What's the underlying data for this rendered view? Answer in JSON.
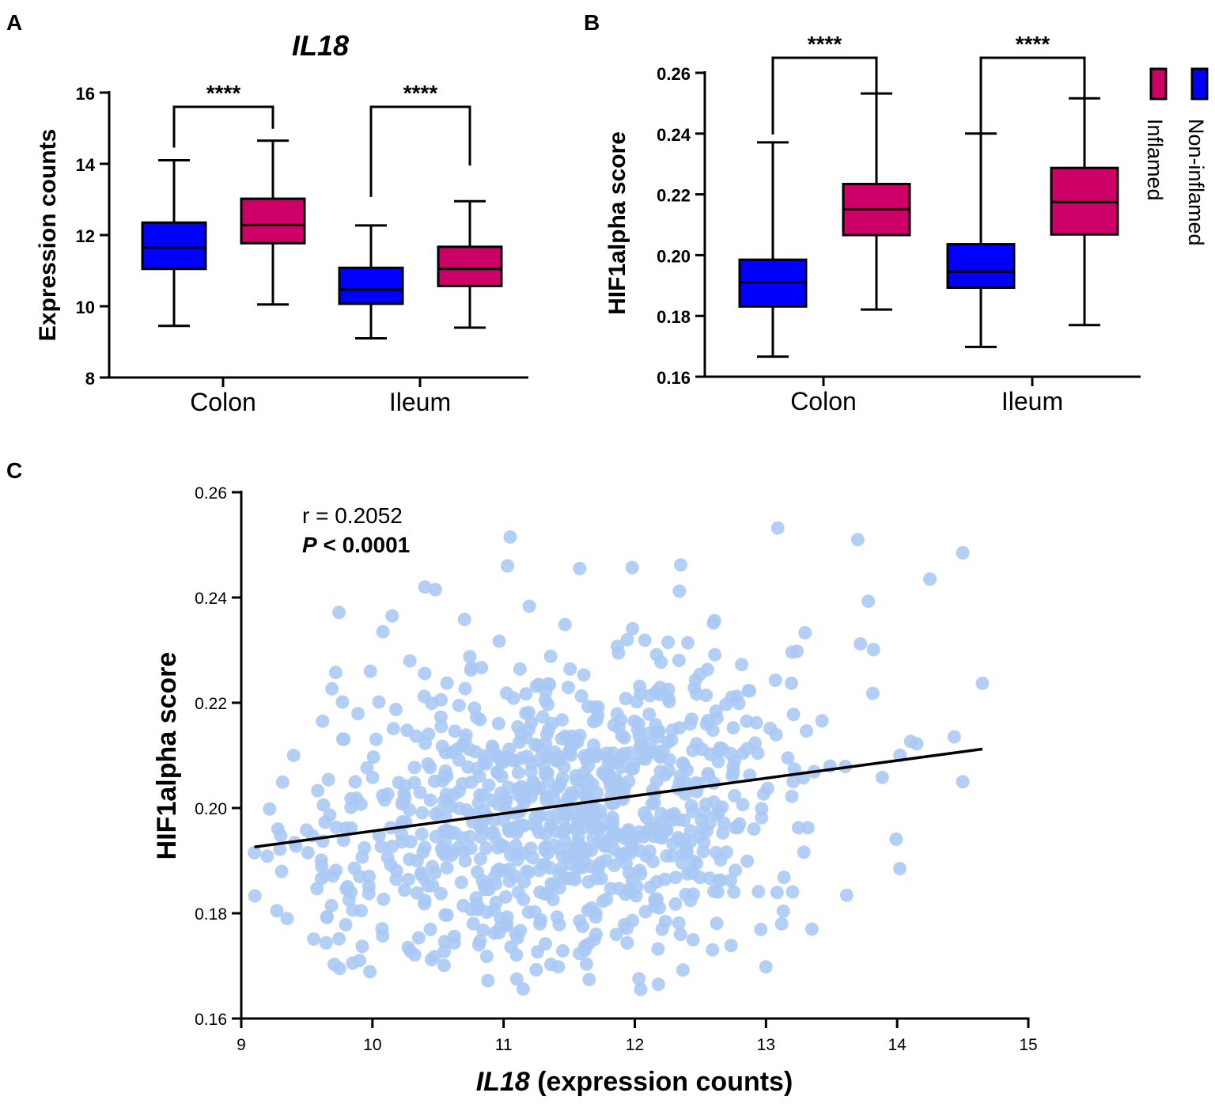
{
  "colors": {
    "non_inflamed": "#0000ff",
    "inflamed": "#cc0066",
    "scatter_dot": "#a8c8f4",
    "axis": "#000000"
  },
  "legend": {
    "items": [
      {
        "label": "Inflamed",
        "color": "#cc0066"
      },
      {
        "label": "Non-inflamed",
        "color": "#0000ff"
      }
    ]
  },
  "chart_data": [
    {
      "panel": "A",
      "type": "box",
      "title": "IL18",
      "ylabel": "Expression counts",
      "xlabel": "",
      "ylim": [
        8,
        16
      ],
      "yticks": [
        8,
        10,
        12,
        14,
        16
      ],
      "categories": [
        "Colon",
        "Ileum"
      ],
      "series": [
        {
          "name": "Non-inflamed",
          "color": "#0000ff",
          "boxes": [
            {
              "min": 9.45,
              "q1": 11.05,
              "median": 11.65,
              "q3": 12.35,
              "max": 14.1
            },
            {
              "min": 9.1,
              "q1": 10.07,
              "median": 10.47,
              "q3": 11.08,
              "max": 12.27
            }
          ]
        },
        {
          "name": "Inflamed",
          "color": "#cc0066",
          "boxes": [
            {
              "min": 10.05,
              "q1": 11.77,
              "median": 12.28,
              "q3": 13.02,
              "max": 14.65
            },
            {
              "min": 9.4,
              "q1": 10.57,
              "median": 11.05,
              "q3": 11.67,
              "max": 12.95
            }
          ]
        }
      ],
      "significance": [
        "****",
        "****"
      ]
    },
    {
      "panel": "B",
      "type": "box",
      "title": "",
      "ylabel": "HIF1alpha score",
      "xlabel": "",
      "ylim": [
        0.16,
        0.26
      ],
      "yticks": [
        0.16,
        0.18,
        0.2,
        0.22,
        0.24,
        0.26
      ],
      "ytick_labels": [
        "0.16",
        "0.18",
        "0.20",
        "0.22",
        "0.24",
        "0.26"
      ],
      "categories": [
        "Colon",
        "Ileum"
      ],
      "series": [
        {
          "name": "Non-inflamed",
          "color": "#0000ff",
          "boxes": [
            {
              "min": 0.1666,
              "q1": 0.1831,
              "median": 0.1911,
              "q3": 0.1985,
              "max": 0.2371
            },
            {
              "min": 0.1698,
              "q1": 0.1893,
              "median": 0.1946,
              "q3": 0.2036,
              "max": 0.24
            }
          ]
        },
        {
          "name": "Inflamed",
          "color": "#cc0066",
          "boxes": [
            {
              "min": 0.1821,
              "q1": 0.2066,
              "median": 0.2151,
              "q3": 0.2234,
              "max": 0.2532
            },
            {
              "min": 0.177,
              "q1": 0.2068,
              "median": 0.2175,
              "q3": 0.2287,
              "max": 0.2516
            }
          ]
        }
      ],
      "significance": [
        "****",
        "****"
      ]
    },
    {
      "panel": "C",
      "type": "scatter",
      "title": "",
      "xlabel_italic": "IL18",
      "xlabel_rest": " (expression counts)",
      "ylabel": "HIF1alpha score",
      "xlim": [
        9,
        15
      ],
      "ylim": [
        0.16,
        0.26
      ],
      "xticks": [
        9,
        10,
        11,
        12,
        13,
        14,
        15
      ],
      "yticks": [
        0.16,
        0.18,
        0.2,
        0.22,
        0.24,
        0.26
      ],
      "ytick_labels": [
        "0.16",
        "0.18",
        "0.20",
        "0.22",
        "0.24",
        "0.26"
      ],
      "regression": {
        "x": [
          9.1,
          14.65
        ],
        "y": [
          0.1926,
          0.2112
        ]
      },
      "stats": {
        "r": "r = 0.2052",
        "p_letter": "P",
        "p_rest": " < 0.0001"
      },
      "n_points": 950,
      "highlight_points": [
        {
          "x": 9.1,
          "y": 0.1915
        },
        {
          "x": 9.28,
          "y": 0.196
        },
        {
          "x": 9.35,
          "y": 0.179
        },
        {
          "x": 9.4,
          "y": 0.21
        },
        {
          "x": 9.75,
          "y": 0.1695
        },
        {
          "x": 9.62,
          "y": 0.2165
        },
        {
          "x": 10.08,
          "y": 0.2335
        },
        {
          "x": 10.15,
          "y": 0.2365
        },
        {
          "x": 10.4,
          "y": 0.242
        },
        {
          "x": 10.48,
          "y": 0.2415
        },
        {
          "x": 11.05,
          "y": 0.2515
        },
        {
          "x": 11.03,
          "y": 0.246
        },
        {
          "x": 11.58,
          "y": 0.2455
        },
        {
          "x": 11.98,
          "y": 0.2457
        },
        {
          "x": 12.35,
          "y": 0.2462
        },
        {
          "x": 12.34,
          "y": 0.2412
        },
        {
          "x": 13.09,
          "y": 0.2532
        },
        {
          "x": 13.7,
          "y": 0.251
        },
        {
          "x": 14.5,
          "y": 0.2485
        },
        {
          "x": 14.25,
          "y": 0.2435
        },
        {
          "x": 14.65,
          "y": 0.2237
        },
        {
          "x": 14.5,
          "y": 0.205
        },
        {
          "x": 14.15,
          "y": 0.2122
        },
        {
          "x": 14.02,
          "y": 0.1885
        },
        {
          "x": 13.35,
          "y": 0.177
        },
        {
          "x": 13.12,
          "y": 0.178
        },
        {
          "x": 12.18,
          "y": 0.1665
        },
        {
          "x": 10.88,
          "y": 0.1672
        },
        {
          "x": 11.1,
          "y": 0.1675
        },
        {
          "x": 10.45,
          "y": 0.1712
        },
        {
          "x": 13.78,
          "y": 0.2393
        },
        {
          "x": 13.72,
          "y": 0.2312
        }
      ]
    }
  ],
  "panel_labels": [
    "A",
    "B",
    "C"
  ]
}
